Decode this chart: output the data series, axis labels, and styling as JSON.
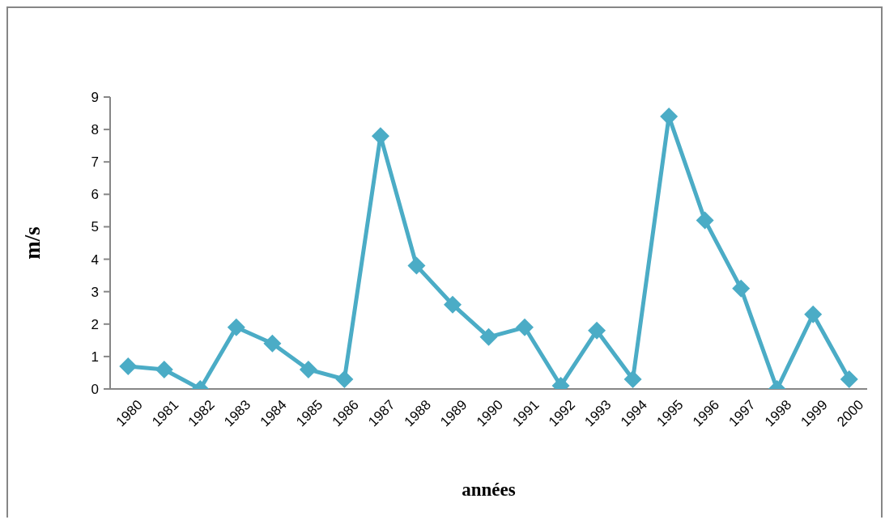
{
  "chart_data": {
    "type": "line",
    "xlabel": "années",
    "ylabel": "m/s",
    "categories": [
      "1980",
      "1981",
      "1982",
      "1983",
      "1984",
      "1985",
      "1986",
      "1987",
      "1988",
      "1989",
      "1990",
      "1991",
      "1992",
      "1993",
      "1994",
      "1995",
      "1996",
      "1997",
      "1998",
      "1999",
      "2000"
    ],
    "series": [
      {
        "color": "#4bacc6",
        "values": [
          0.7,
          0.6,
          0,
          1.9,
          1.4,
          0.6,
          0.3,
          7.8,
          3.8,
          2.6,
          1.6,
          1.9,
          0.1,
          1.8,
          0.3,
          8.4,
          5.2,
          3.1,
          0,
          2.3,
          0.3
        ]
      }
    ],
    "ylim": [
      0,
      9
    ],
    "yticks": [
      0,
      1,
      2,
      3,
      4,
      5,
      6,
      7,
      8,
      9
    ],
    "marker": "diamond",
    "line_style": "solid"
  }
}
